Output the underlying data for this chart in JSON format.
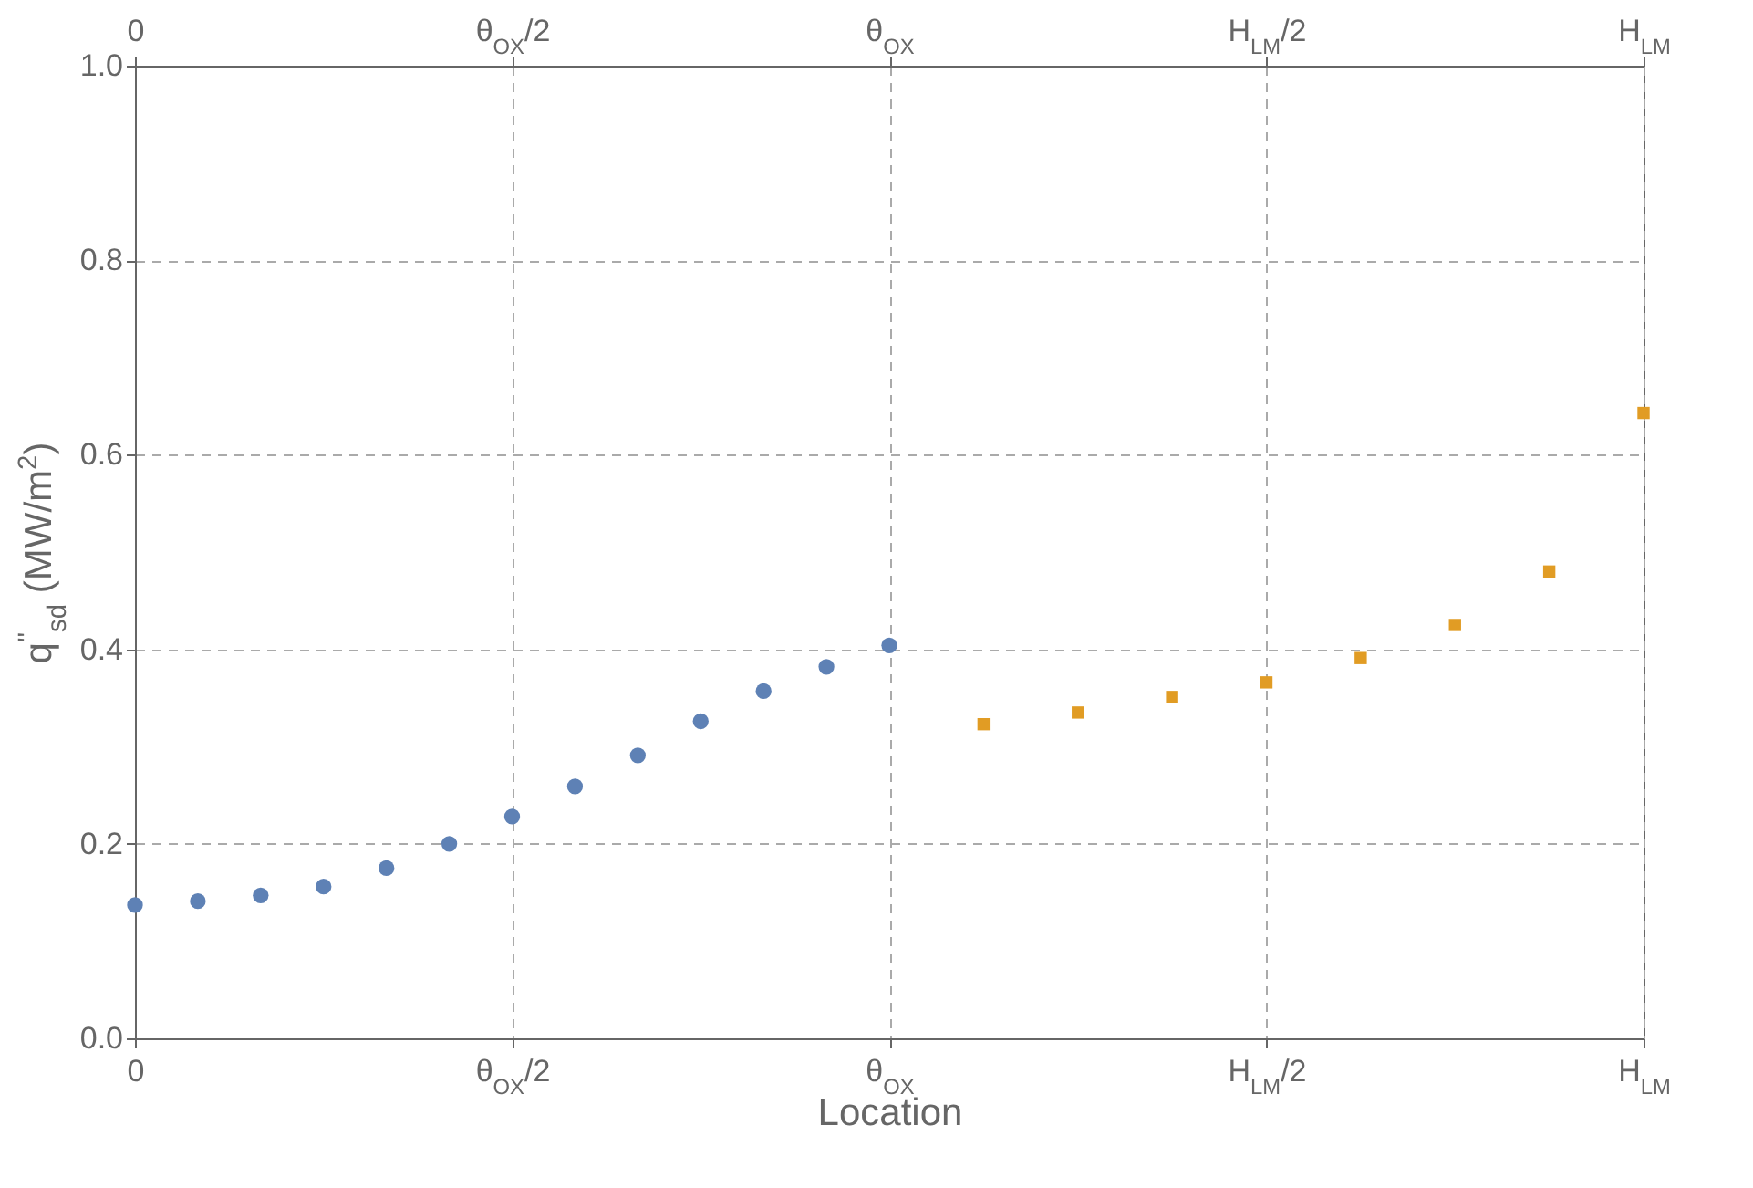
{
  "chart_data": {
    "type": "scatter",
    "xlabel": "Location",
    "ylabel": "q$^{''}$$_{sd}$ (MW/m$^{2}$)",
    "categories": [
      "0",
      null,
      null,
      null,
      null,
      null,
      null,
      null,
      null,
      null,
      null,
      null,
      "θ$_{OX}$/2",
      null,
      null,
      null,
      null,
      null,
      null,
      null,
      null,
      null,
      null,
      null,
      "θ$_{OX}$",
      null,
      null,
      null,
      null,
      null,
      null,
      null,
      null,
      null,
      null,
      null,
      "H$_{LM}$/2",
      null,
      null,
      null,
      null,
      null,
      null,
      null,
      null,
      null,
      null,
      null,
      "H$_{LM}$"
    ],
    "ylim": [
      0,
      1
    ],
    "yticks": [
      {
        "value": 0,
        "label": "0.0"
      },
      0.2,
      0.4,
      0.6,
      0.8,
      {
        "value": 1,
        "label": "1.0"
      }
    ],
    "grid": true,
    "series": [
      {
        "color": "#5e81b5",
        "marker": "circle",
        "values": [
          0.137,
          null,
          0.141,
          null,
          0.147,
          null,
          0.156,
          null,
          0.175,
          null,
          0.2,
          null,
          0.228,
          null,
          0.259,
          null,
          0.291,
          null,
          0.326,
          null,
          0.357,
          null,
          0.382,
          null,
          0.404,
          null,
          null,
          null,
          null,
          null,
          null,
          null,
          null,
          null,
          null,
          null,
          null,
          null,
          null,
          null,
          null,
          null,
          null,
          null,
          null,
          null,
          null,
          null,
          null
        ]
      },
      {
        "color": "#e19c24",
        "marker": "square",
        "values": [
          null,
          null,
          null,
          null,
          null,
          null,
          null,
          null,
          null,
          null,
          null,
          null,
          null,
          null,
          null,
          null,
          null,
          null,
          null,
          null,
          null,
          null,
          null,
          null,
          null,
          null,
          null,
          0.323,
          null,
          null,
          0.335,
          null,
          null,
          0.351,
          null,
          null,
          0.366,
          null,
          null,
          0.391,
          null,
          null,
          0.425,
          null,
          null,
          0.48,
          null,
          null,
          0.643
        ]
      }
    ]
  }
}
